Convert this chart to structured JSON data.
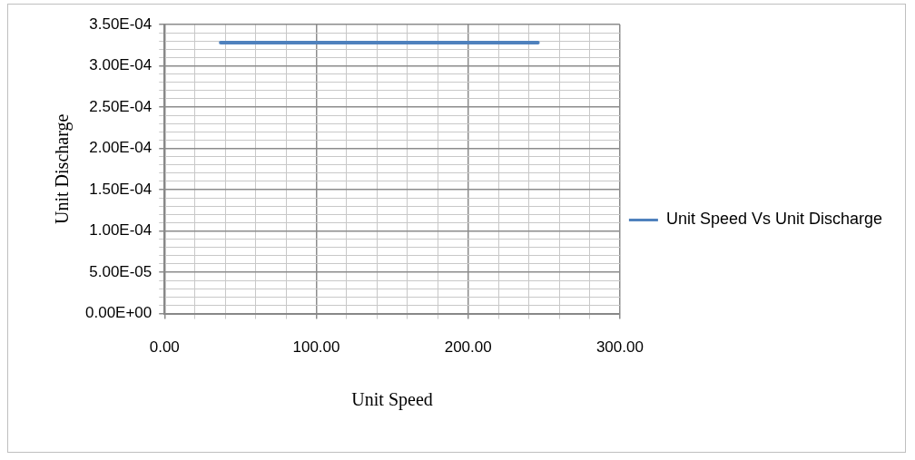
{
  "chart_data": {
    "type": "line",
    "xlabel": "Unit Speed",
    "ylabel": "Unit Discharge",
    "x": [
      37,
      246
    ],
    "series": [
      {
        "name": "Unit Speed Vs Unit Discharge",
        "color": "#4f81bd",
        "values": [
          0.000328,
          0.000328
        ]
      }
    ],
    "xlim": [
      0,
      300
    ],
    "xticks": [
      {
        "value": 0,
        "label": "0.00"
      },
      {
        "value": 20,
        "label": null
      },
      {
        "value": 40,
        "label": null
      },
      {
        "value": 60,
        "label": null
      },
      {
        "value": 80,
        "label": null
      },
      {
        "value": 100,
        "label": "100.00"
      },
      {
        "value": 120,
        "label": null
      },
      {
        "value": 140,
        "label": null
      },
      {
        "value": 160,
        "label": null
      },
      {
        "value": 180,
        "label": null
      },
      {
        "value": 200,
        "label": "200.00"
      },
      {
        "value": 220,
        "label": null
      },
      {
        "value": 240,
        "label": null
      },
      {
        "value": 260,
        "label": null
      },
      {
        "value": 280,
        "label": null
      },
      {
        "value": 300,
        "label": "300.00"
      }
    ],
    "ylim": [
      0,
      0.00035
    ],
    "yticks": [
      {
        "value": 0,
        "label": "0.00E+00"
      },
      {
        "value": 1e-05,
        "label": null
      },
      {
        "value": 2e-05,
        "label": null
      },
      {
        "value": 3e-05,
        "label": null
      },
      {
        "value": 4e-05,
        "label": null
      },
      {
        "value": 5e-05,
        "label": "5.00E-05"
      },
      {
        "value": 6e-05,
        "label": null
      },
      {
        "value": 7e-05,
        "label": null
      },
      {
        "value": 8e-05,
        "label": null
      },
      {
        "value": 9e-05,
        "label": null
      },
      {
        "value": 0.0001,
        "label": "1.00E-04"
      },
      {
        "value": 0.00011,
        "label": null
      },
      {
        "value": 0.00012,
        "label": null
      },
      {
        "value": 0.00013,
        "label": null
      },
      {
        "value": 0.00014,
        "label": null
      },
      {
        "value": 0.00015,
        "label": "1.50E-04"
      },
      {
        "value": 0.00016,
        "label": null
      },
      {
        "value": 0.00017,
        "label": null
      },
      {
        "value": 0.00018,
        "label": null
      },
      {
        "value": 0.00019,
        "label": null
      },
      {
        "value": 0.0002,
        "label": "2.00E-04"
      },
      {
        "value": 0.00021,
        "label": null
      },
      {
        "value": 0.00022,
        "label": null
      },
      {
        "value": 0.00023,
        "label": null
      },
      {
        "value": 0.00024,
        "label": null
      },
      {
        "value": 0.00025,
        "label": "2.50E-04"
      },
      {
        "value": 0.00026,
        "label": null
      },
      {
        "value": 0.00027,
        "label": null
      },
      {
        "value": 0.00028,
        "label": null
      },
      {
        "value": 0.00029,
        "label": null
      },
      {
        "value": 0.0003,
        "label": "3.00E-04"
      },
      {
        "value": 0.00031,
        "label": null
      },
      {
        "value": 0.00032,
        "label": null
      },
      {
        "value": 0.00033,
        "label": null
      },
      {
        "value": 0.00034,
        "label": null
      },
      {
        "value": 0.00035,
        "label": "3.50E-04"
      }
    ],
    "grid": true,
    "legend": "right",
    "marker": "none",
    "line_style": "solid"
  }
}
